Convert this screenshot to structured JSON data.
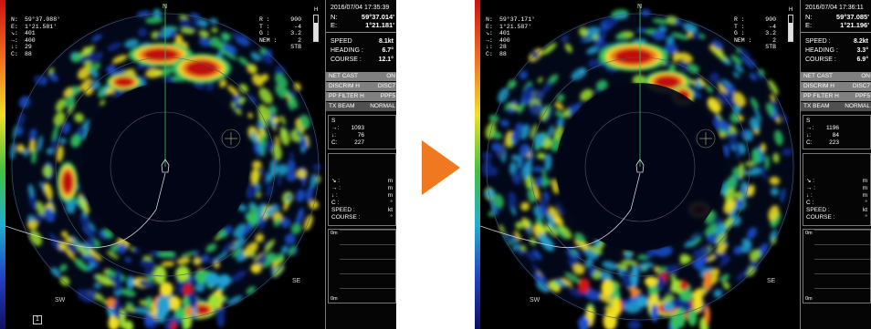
{
  "screens": [
    {
      "nav": {
        "n_label": "N:",
        "n_value": "59°37.088'",
        "e_label": "E:",
        "e_value": "1°21.581'",
        "r1_label": "↘:",
        "r1_value": "401",
        "r2_label": "→:",
        "r2_value": "400",
        "r3_label": "↓:",
        "r3_value": "29",
        "r4_label": "C:",
        "r4_value": "88"
      },
      "params": {
        "r_label": "R :",
        "r_value": "900",
        "t_label": "T :",
        "t_value": "-4",
        "g_label": "G :",
        "g_value": "3.2",
        "nem_label": "NEM :",
        "nem_value": "2",
        "stb": "STB",
        "gauge_label": "H"
      },
      "compass": {
        "n": "N",
        "sw": "SW",
        "se": "SE"
      },
      "range_box": "1",
      "panel": {
        "timestamp": "2016/07/04 17:35:39",
        "n_label": "N:",
        "n_value": "59°37.014'",
        "e_label": "E:",
        "e_value": "1°21.181'",
        "speed_label": "SPEED",
        "speed_value": "8.1kt",
        "heading_label": "HEADING :",
        "heading_value": "6.7°",
        "course_label": "COURSE :",
        "course_value": "12.1°",
        "modes": [
          {
            "k": "NET CAST",
            "v": "ON"
          },
          {
            "k": "DISCRIM H",
            "v": "DISC7"
          },
          {
            "k": "PP FILTER H",
            "v": "PPF5"
          },
          {
            "k": "TX BEAM",
            "v": "NORMAL"
          }
        ],
        "sect_title": "S",
        "s1_label": "→:",
        "s1_value": "1093",
        "s2_label": "↓:",
        "s2_value": "76",
        "s3_label": "C:",
        "s3_value": "227",
        "target_rows": [
          {
            "k": "↘ :",
            "v": "m"
          },
          {
            "k": "→ :",
            "v": "m"
          },
          {
            "k": "↓ :",
            "v": "m"
          },
          {
            "k": "C :",
            "v": "°"
          },
          {
            "k": "SPEED :",
            "v": "kt"
          },
          {
            "k": "COURSE :",
            "v": "°"
          }
        ],
        "hist_top": "0m",
        "hist_bottom": "0m"
      }
    },
    {
      "nav": {
        "n_label": "N:",
        "n_value": "59°37.171'",
        "e_label": "E:",
        "e_value": "1°21.587'",
        "r1_label": "↘:",
        "r1_value": "401",
        "r2_label": "→:",
        "r2_value": "400",
        "r3_label": "↓:",
        "r3_value": "28",
        "r4_label": "C:",
        "r4_value": "88"
      },
      "params": {
        "r_label": "R :",
        "r_value": "900",
        "t_label": "T :",
        "t_value": "-4",
        "g_label": "G :",
        "g_value": "3.2",
        "nem_label": "NEM :",
        "nem_value": "2",
        "stb": "STB",
        "gauge_label": "H"
      },
      "compass": {
        "n": "N",
        "sw": "SW",
        "se": "SE"
      },
      "panel": {
        "timestamp": "2016/07/04 17:36:11",
        "n_label": "N:",
        "n_value": "59°37.085'",
        "e_label": "E:",
        "e_value": "1°21.196'",
        "speed_label": "SPEED :",
        "speed_value": "8.2kt",
        "heading_label": "HEADING :",
        "heading_value": "3.3°",
        "course_label": "COURSE :",
        "course_value": "6.9°",
        "modes": [
          {
            "k": "NET CAST",
            "v": "ON"
          },
          {
            "k": "DISCRIM H",
            "v": "DISC7"
          },
          {
            "k": "PP FILTER H",
            "v": "PPF5"
          },
          {
            "k": "TX BEAM",
            "v": "NORMAL"
          }
        ],
        "sect_title": "S",
        "s1_label": "→:",
        "s1_value": "1196",
        "s2_label": "↓:",
        "s2_value": "84",
        "s3_label": "C:",
        "s3_value": "223",
        "target_rows": [
          {
            "k": "↘ :",
            "v": "m"
          },
          {
            "k": "→ :",
            "v": "m"
          },
          {
            "k": "↓ :",
            "v": "m"
          },
          {
            "k": "C :",
            "v": "°"
          },
          {
            "k": "SPEED :",
            "v": "kt"
          },
          {
            "k": "COURSE :",
            "v": "°"
          }
        ],
        "hist_top": "0m",
        "hist_bottom": "0m"
      }
    }
  ],
  "colors": {
    "arrow": "#f07820",
    "echo_strong": "#c01010",
    "echo_mid": "#f0e020",
    "echo_weak": "#20a0c0",
    "background": "#000000"
  }
}
